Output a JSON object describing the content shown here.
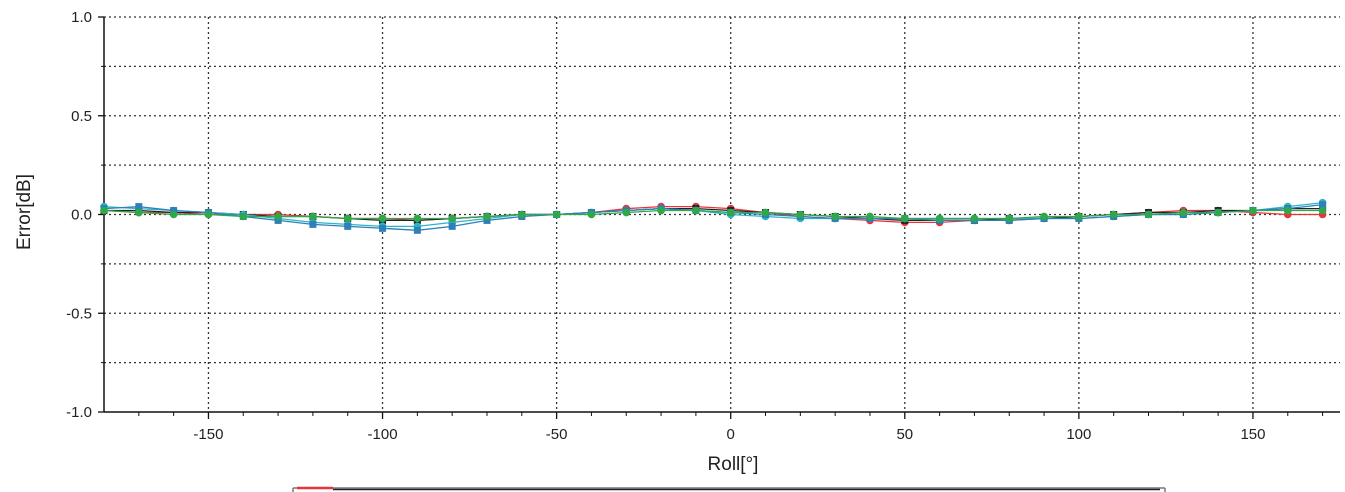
{
  "chart_data": {
    "type": "line",
    "title": "",
    "xlabel": "Roll[°]",
    "ylabel": "Error[dB]",
    "xlim": [
      -180,
      175
    ],
    "ylim": [
      -1.0,
      1.0
    ],
    "xticks": [
      -150,
      -100,
      -50,
      0,
      50,
      100,
      150
    ],
    "xtick_labels": [
      "-150",
      "-100",
      "-50",
      "0",
      "50",
      "100",
      "150"
    ],
    "xticks_minor": [
      -170,
      -160,
      -140,
      -130,
      -120,
      -110,
      -90,
      -80,
      -70,
      -60,
      -40,
      -30,
      -20,
      -10,
      10,
      20,
      30,
      40,
      60,
      70,
      80,
      90,
      110,
      120,
      130,
      140,
      160,
      170
    ],
    "yticks": [
      -1.0,
      -0.5,
      0.0,
      0.5,
      1.0
    ],
    "ytick_labels": [
      "-1.0",
      "-0.5",
      "0.0",
      "0.5",
      "1.0"
    ],
    "grid": true,
    "grid_style": "dotted",
    "legend": "bottom",
    "legend_colors": [
      "#e8333b",
      "#222222"
    ],
    "x": [
      -180,
      -170,
      -160,
      -150,
      -140,
      -130,
      -120,
      -110,
      -100,
      -90,
      -80,
      -70,
      -60,
      -50,
      -40,
      -30,
      -20,
      -10,
      0,
      10,
      20,
      30,
      40,
      50,
      60,
      70,
      80,
      90,
      100,
      110,
      120,
      130,
      140,
      150,
      160,
      170
    ],
    "series": [
      {
        "color": "#e8333b",
        "marker": "circle",
        "values": [
          0.02,
          0.01,
          0.01,
          0.0,
          0.0,
          0.0,
          -0.01,
          -0.02,
          -0.02,
          -0.03,
          -0.02,
          -0.01,
          0.0,
          0.0,
          0.01,
          0.03,
          0.04,
          0.04,
          0.03,
          0.01,
          -0.01,
          -0.02,
          -0.03,
          -0.04,
          -0.04,
          -0.03,
          -0.03,
          -0.02,
          -0.01,
          0.0,
          0.01,
          0.02,
          0.02,
          0.01,
          0.0,
          0.0
        ]
      },
      {
        "color": "#222222",
        "marker": "square",
        "values": [
          0.02,
          0.02,
          0.01,
          0.01,
          0.0,
          -0.01,
          -0.01,
          -0.02,
          -0.03,
          -0.03,
          -0.02,
          -0.01,
          0.0,
          0.0,
          0.01,
          0.02,
          0.03,
          0.03,
          0.02,
          0.01,
          0.0,
          -0.01,
          -0.02,
          -0.03,
          -0.03,
          -0.03,
          -0.02,
          -0.02,
          -0.01,
          0.0,
          0.01,
          0.01,
          0.02,
          0.02,
          0.03,
          0.03
        ]
      },
      {
        "color": "#2bb5c9",
        "marker": "circle",
        "values": [
          0.04,
          0.03,
          0.02,
          0.01,
          0.0,
          -0.02,
          -0.04,
          -0.05,
          -0.06,
          -0.06,
          -0.04,
          -0.02,
          0.0,
          0.0,
          0.01,
          0.02,
          0.03,
          0.02,
          0.0,
          -0.01,
          -0.02,
          -0.02,
          -0.02,
          -0.02,
          -0.02,
          -0.02,
          -0.02,
          -0.02,
          -0.02,
          -0.01,
          0.0,
          0.0,
          0.01,
          0.02,
          0.04,
          0.06
        ]
      },
      {
        "color": "#2f7fb8",
        "marker": "square",
        "values": [
          0.03,
          0.04,
          0.02,
          0.01,
          -0.01,
          -0.03,
          -0.05,
          -0.06,
          -0.07,
          -0.08,
          -0.06,
          -0.03,
          -0.01,
          0.0,
          0.01,
          0.02,
          0.03,
          0.02,
          0.01,
          0.0,
          -0.01,
          -0.02,
          -0.02,
          -0.02,
          -0.03,
          -0.03,
          -0.03,
          -0.02,
          -0.02,
          -0.01,
          0.0,
          0.0,
          0.01,
          0.02,
          0.03,
          0.05
        ]
      },
      {
        "color": "#2ea84a",
        "marker": "circle",
        "values": [
          0.02,
          0.01,
          0.0,
          0.0,
          -0.01,
          -0.01,
          -0.01,
          -0.02,
          -0.02,
          -0.02,
          -0.02,
          -0.01,
          0.0,
          0.0,
          0.0,
          0.01,
          0.02,
          0.02,
          0.01,
          0.01,
          0.0,
          -0.01,
          -0.01,
          -0.02,
          -0.02,
          -0.02,
          -0.02,
          -0.01,
          -0.01,
          0.0,
          0.0,
          0.01,
          0.01,
          0.02,
          0.02,
          0.02
        ]
      }
    ]
  }
}
